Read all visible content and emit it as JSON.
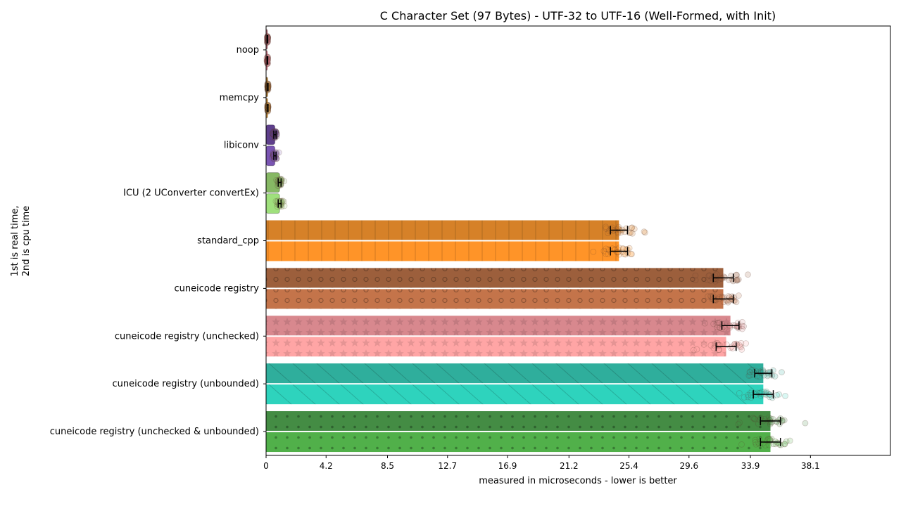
{
  "chart_data": {
    "type": "bar",
    "orientation": "horizontal",
    "title": "C Character Set (97 Bytes) - UTF-32 to UTF-16 (Well-Formed, with Init)",
    "xlabel": "measured in microseconds - lower is better",
    "ylabel_lines": [
      "1st is real time,",
      "2nd is cpu time"
    ],
    "xlim": [
      0,
      43.7
    ],
    "xticks": [
      0,
      4.2,
      8.5,
      12.7,
      16.9,
      21.2,
      25.4,
      29.6,
      33.9,
      38.1
    ],
    "xtick_labels": [
      "0",
      "4.2",
      "8.5",
      "12.7",
      "16.9",
      "21.2",
      "25.4",
      "29.6",
      "33.9",
      "38.1"
    ],
    "series": [
      {
        "name": "real time"
      },
      {
        "name": "cpu time"
      }
    ],
    "categories": [
      {
        "label": "noop",
        "real": 0.1,
        "cpu": 0.1,
        "real_err": 0.02,
        "cpu_err": 0.02,
        "color_real": "#c06d7a",
        "color_cpu": "#e87f92",
        "pattern": "none"
      },
      {
        "label": "memcpy",
        "real": 0.12,
        "cpu": 0.12,
        "real_err": 0.02,
        "cpu_err": 0.02,
        "color_real": "#b88235",
        "color_cpu": "#d99a40",
        "pattern": "none"
      },
      {
        "label": "libiconv",
        "real": 0.62,
        "cpu": 0.62,
        "real_err": 0.08,
        "cpu_err": 0.08,
        "color_real": "#5e3f8c",
        "color_cpu": "#7a55b3",
        "pattern": "none"
      },
      {
        "label": "ICU (2 UConverter convertEx)",
        "real": 0.95,
        "cpu": 0.95,
        "real_err": 0.1,
        "cpu_err": 0.1,
        "color_real": "#86b864",
        "color_cpu": "#9fe07c",
        "pattern": "none"
      },
      {
        "label": "standard_cpp",
        "real": 24.7,
        "cpu": 24.7,
        "real_err": 0.6,
        "cpu_err": 0.6,
        "color_real": "#d68128",
        "color_cpu": "#ff9428",
        "pattern": "vlines"
      },
      {
        "label": "cuneicode registry",
        "real": 32.0,
        "cpu": 32.0,
        "real_err": 0.7,
        "cpu_err": 0.7,
        "color_real": "#9c5f3c",
        "color_cpu": "#c4744a",
        "pattern": "circles"
      },
      {
        "label": "cuneicode registry (unchecked)",
        "real": 32.5,
        "cpu": 32.2,
        "real_err": 0.6,
        "cpu_err": 0.7,
        "color_real": "#d8888e",
        "color_cpu": "#ffa5a5",
        "pattern": "stars"
      },
      {
        "label": "cuneicode registry (unbounded)",
        "real": 34.8,
        "cpu": 34.8,
        "real_err": 0.6,
        "cpu_err": 0.7,
        "color_real": "#2fae9c",
        "color_cpu": "#2ed3bd",
        "pattern": "diagonal"
      },
      {
        "label": "cuneicode registry (unchecked & unbounded)",
        "real": 35.3,
        "cpu": 35.3,
        "real_err": 0.7,
        "cpu_err": 0.7,
        "color_real": "#448c44",
        "color_cpu": "#51b04a",
        "pattern": "dots"
      }
    ]
  }
}
